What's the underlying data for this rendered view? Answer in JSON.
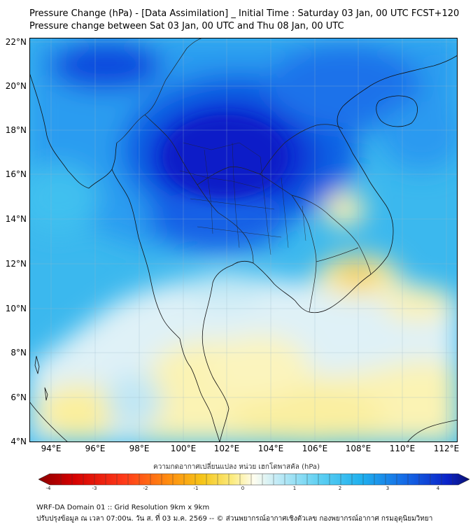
{
  "title_line1": "Pressure Change (hPa) - [Data Assimilation] _ Initial Time : Saturday 03 Jan, 00 UTC FCST+120",
  "title_line2": "Pressure change between Sat 03 Jan, 00 UTC and Thu 08 Jan, 00 UTC",
  "map": {
    "lat_labels": [
      "22°N",
      "20°N",
      "18°N",
      "16°N",
      "14°N",
      "12°N",
      "10°N",
      "8°N",
      "6°N",
      "4°N"
    ],
    "lon_labels": [
      "94°E",
      "96°E",
      "98°E",
      "100°E",
      "102°E",
      "104°E",
      "106°E",
      "108°E",
      "110°E",
      "112°E"
    ],
    "grid": "on",
    "colors": {
      "strong_fall": "#8b0000",
      "fall": "#f4d838",
      "neutral": "#fdfbe6",
      "rise": "#49c8ee",
      "strong_rise": "#0a22d2"
    }
  },
  "colorbar": {
    "title": "ความกดอากาศเปลี่ยนแปลง หน่วย เฮกโตพาสคัล (hPa)",
    "tick_labels": [
      "-4",
      "-3",
      "-2",
      "-1",
      "0",
      "1",
      "2",
      "3",
      "4"
    ]
  },
  "footer_line1": "WRF-DA Domain 01 :: Grid Resolution 9km x 9km",
  "footer_line2": "ปรับปรุงข้อมูล ณ เวลา 07:00น. วัน ส. ที่ 03 ม.ค. 2569 -- © ส่วนพยากรณ์อากาศเชิงตัวเลข กองพยากรณ์อากาศ กรมอุตุนิยมวิทยา"
}
